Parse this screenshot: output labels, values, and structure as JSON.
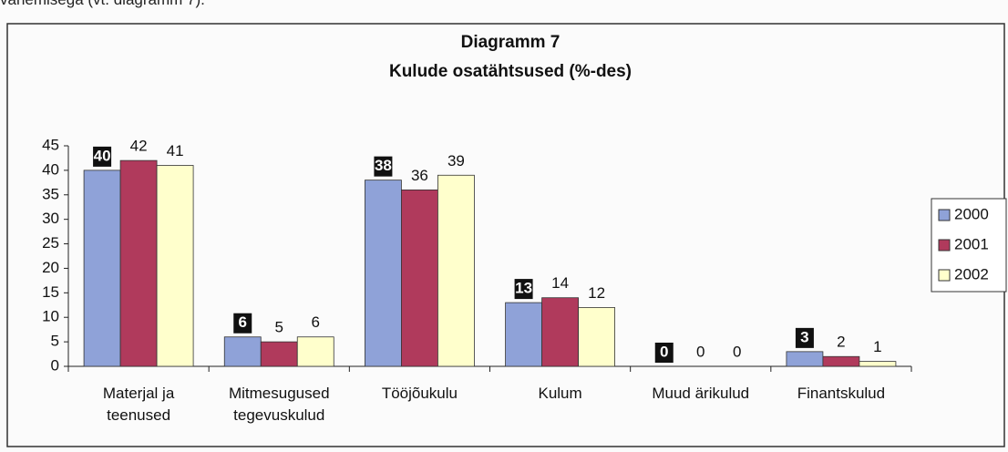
{
  "context_text": "vanemisega (vt. diagramm 7).",
  "chart_data": {
    "type": "bar",
    "title": "Diagramm 7",
    "subtitle": "Kulude osatähtsused (%-des)",
    "categories": [
      "Materjal ja teenused",
      "Mitmesugused tegevuskulud",
      "Tööjõukulu",
      "Kulum",
      "Muud ärikulud",
      "Finantskulud"
    ],
    "series": [
      {
        "name": "2000",
        "color": "#8fa2d8",
        "label_background": "#111111",
        "values": [
          40,
          6,
          38,
          13,
          0,
          3
        ]
      },
      {
        "name": "2001",
        "color": "#b03a5c",
        "values": [
          42,
          5,
          36,
          14,
          0,
          2
        ]
      },
      {
        "name": "2002",
        "color": "#ffffcc",
        "values": [
          41,
          6,
          39,
          12,
          0,
          1
        ]
      }
    ],
    "ylim": [
      0,
      45
    ],
    "yticks": [
      0,
      5,
      10,
      15,
      20,
      25,
      30,
      35,
      40,
      45
    ],
    "grid": false,
    "legend": "right"
  }
}
